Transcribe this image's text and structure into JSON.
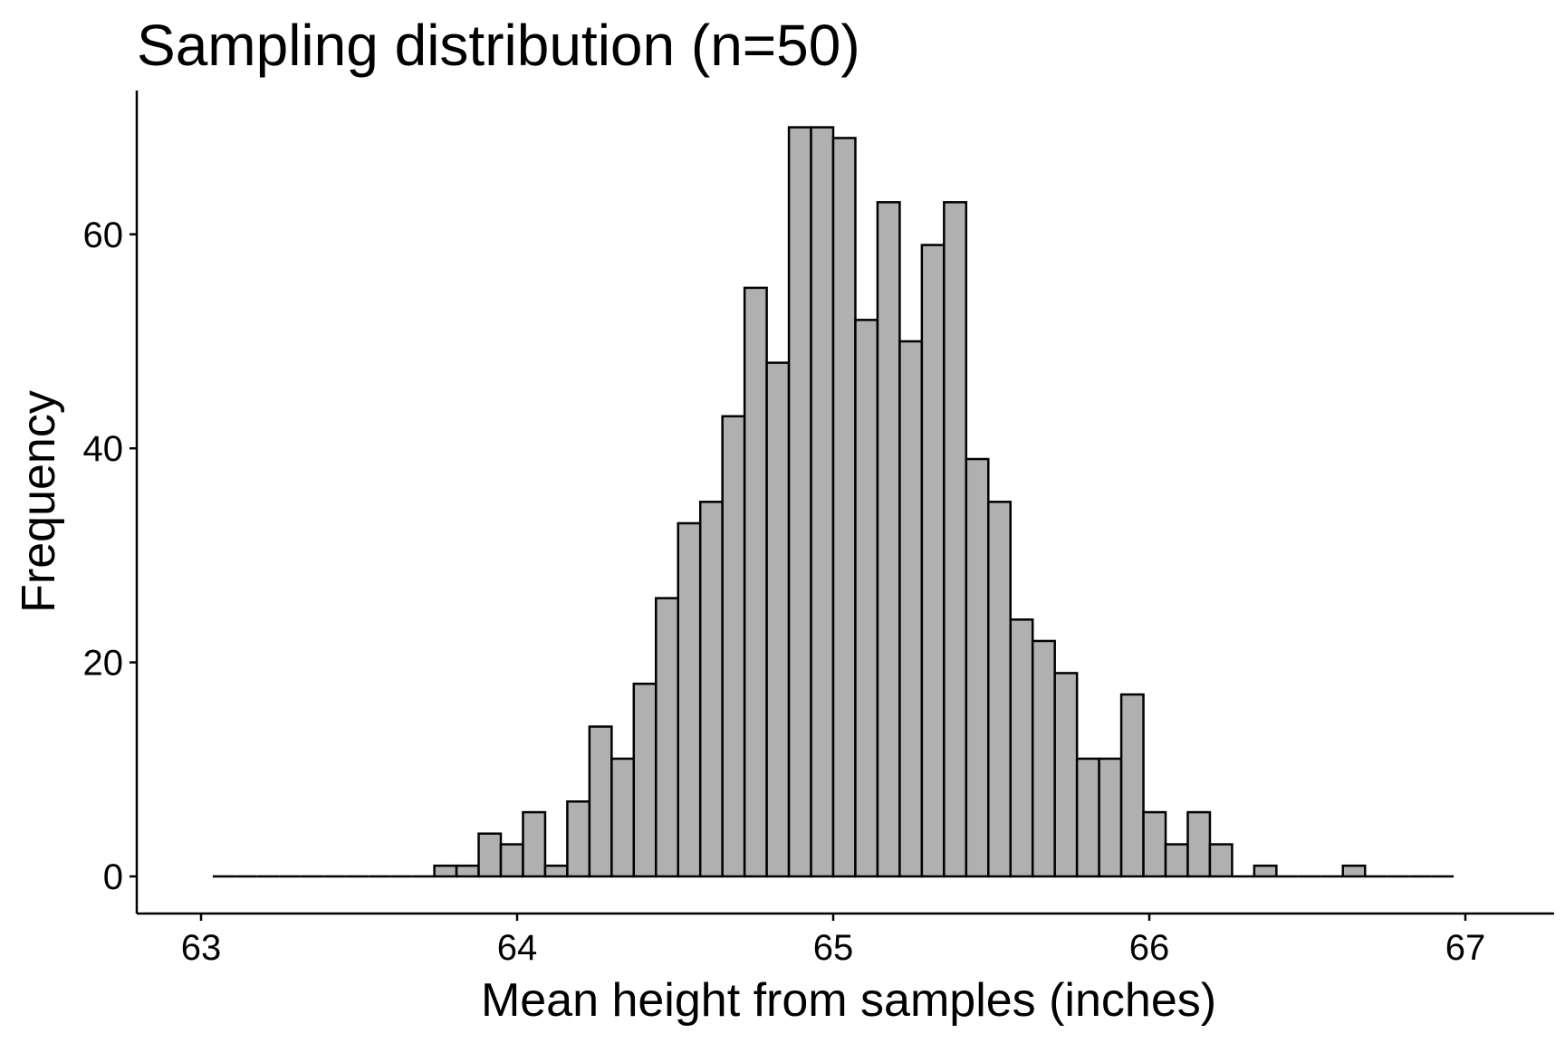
{
  "chart_data": {
    "type": "bar",
    "title": "Sampling distribution (n=50)",
    "xlabel": "Mean height from samples (inches)",
    "ylabel": "Frequency",
    "xlim": [
      62.83,
      67.17
    ],
    "ylim": [
      -3.5,
      73.5
    ],
    "x_ticks": [
      63,
      64,
      65,
      66,
      67
    ],
    "x_tick_labels": [
      "63",
      "64",
      "65",
      "66",
      "67"
    ],
    "y_ticks": [
      0,
      20,
      40,
      60
    ],
    "y_tick_labels": [
      "0",
      "20",
      "40",
      "60"
    ],
    "bin_start": 63.037,
    "bin_end": 66.963,
    "values": [
      0,
      0,
      0,
      0,
      0,
      0,
      0,
      0,
      0,
      0,
      1,
      1,
      4,
      3,
      6,
      1,
      7,
      14,
      11,
      18,
      26,
      33,
      35,
      43,
      55,
      48,
      70,
      70,
      69,
      52,
      63,
      50,
      59,
      63,
      39,
      35,
      24,
      22,
      19,
      11,
      11,
      17,
      6,
      3,
      6,
      3,
      0,
      1,
      0,
      0,
      0,
      1,
      0,
      0,
      0,
      0
    ],
    "bar_fill": "#b0b0b0",
    "bar_stroke": "#000000",
    "grid": false,
    "legend": "none"
  }
}
